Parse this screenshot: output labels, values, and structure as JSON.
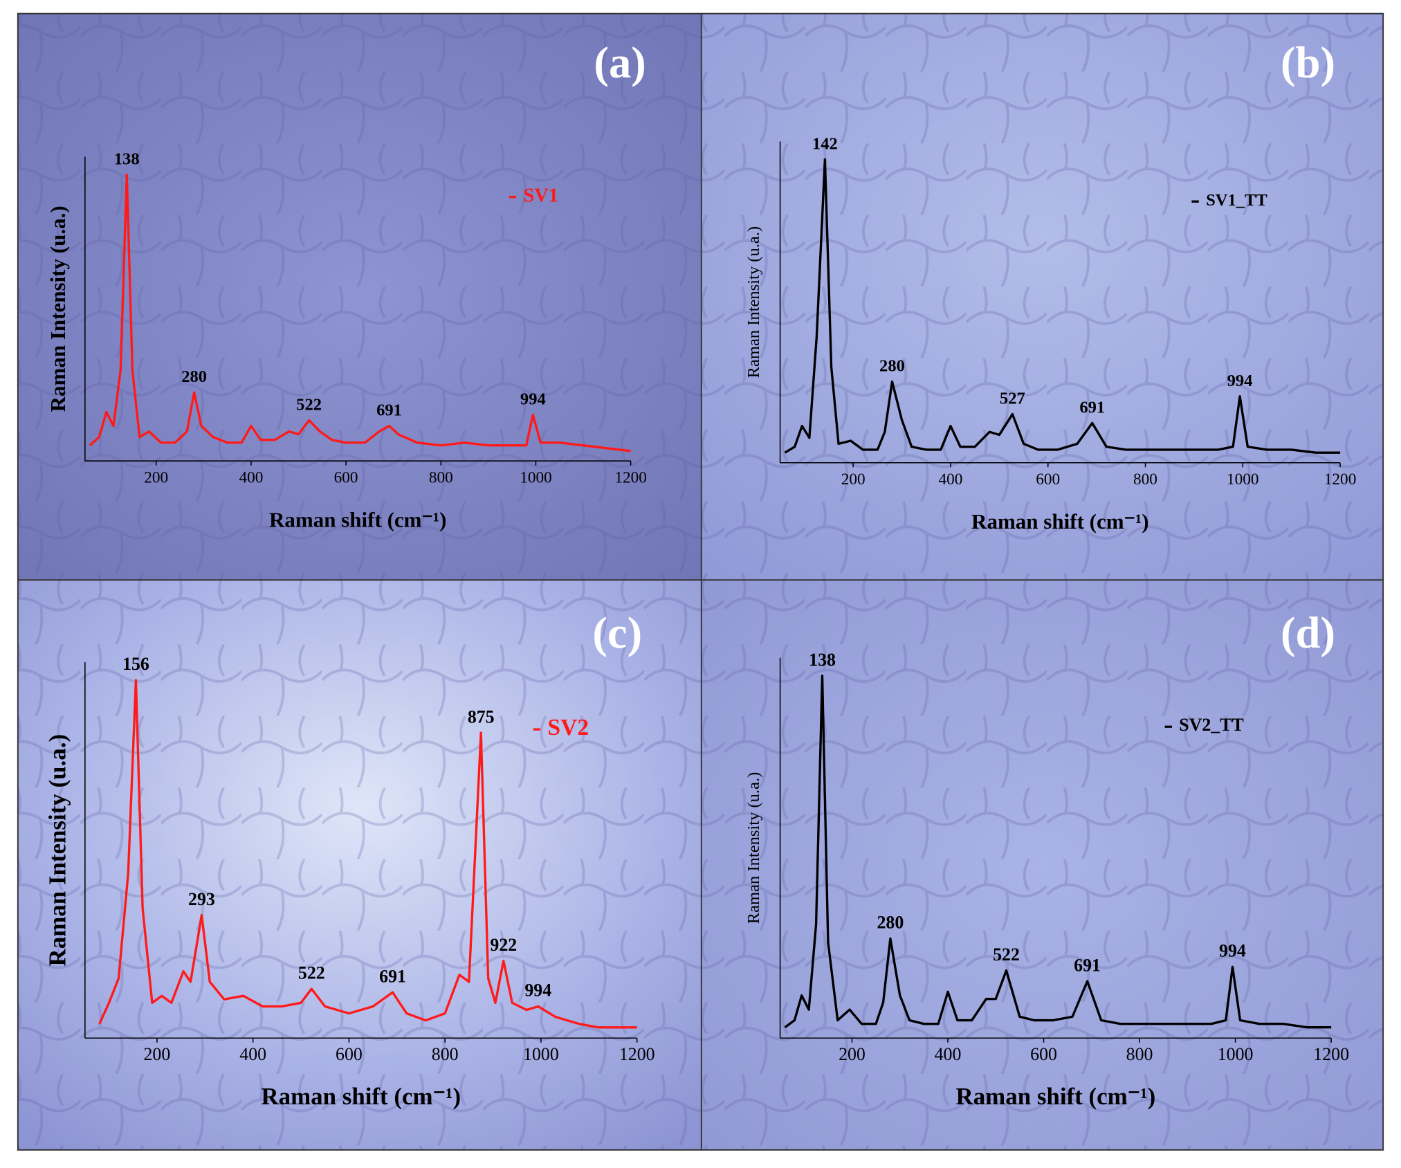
{
  "chart_data": [
    {
      "type": "line",
      "title": "(a)",
      "x_label": "Raman shift (cm⁻¹)",
      "y_label": "Raman Intensity (u.a.)",
      "xlim": [
        50,
        1200
      ],
      "ylim": [
        0,
        100
      ],
      "xticks": [
        200,
        400,
        600,
        800,
        1000,
        1200
      ],
      "x": [
        60,
        80,
        95,
        110,
        125,
        138,
        150,
        165,
        185,
        210,
        240,
        265,
        280,
        295,
        320,
        350,
        380,
        400,
        420,
        450,
        480,
        500,
        522,
        545,
        570,
        600,
        640,
        670,
        691,
        710,
        750,
        800,
        850,
        900,
        950,
        980,
        994,
        1010,
        1050,
        1100,
        1150,
        1200
      ],
      "series": [
        {
          "name": "SV1",
          "color": "#ff1a1a",
          "values": [
            3,
            6,
            15,
            10,
            30,
            100,
            30,
            6,
            8,
            4,
            4,
            8,
            22,
            10,
            6,
            4,
            4,
            10,
            5,
            5,
            8,
            7,
            12,
            8,
            5,
            4,
            4,
            8,
            10,
            7,
            4,
            3,
            4,
            3,
            3,
            3,
            14,
            4,
            4,
            3,
            2,
            1
          ]
        }
      ],
      "peak_labels": [
        138,
        280,
        522,
        691,
        994
      ]
    },
    {
      "type": "line",
      "title": "(b)",
      "x_label": "Raman shift (cm⁻¹)",
      "y_label": "Raman Intensity (u.a.)",
      "xlim": [
        50,
        1200
      ],
      "ylim": [
        0,
        100
      ],
      "xticks": [
        200,
        400,
        600,
        800,
        1000,
        1200
      ],
      "x": [
        60,
        80,
        95,
        110,
        125,
        142,
        155,
        170,
        195,
        220,
        250,
        265,
        280,
        300,
        320,
        350,
        380,
        400,
        420,
        450,
        480,
        500,
        527,
        550,
        580,
        620,
        660,
        691,
        720,
        760,
        800,
        850,
        900,
        950,
        980,
        994,
        1010,
        1050,
        1100,
        1150,
        1200
      ],
      "series": [
        {
          "name": "SV1_TT",
          "color": "#000000",
          "values": [
            1,
            3,
            10,
            6,
            40,
            100,
            30,
            4,
            5,
            2,
            2,
            8,
            25,
            12,
            3,
            2,
            2,
            10,
            3,
            3,
            8,
            7,
            14,
            4,
            2,
            2,
            4,
            11,
            3,
            2,
            2,
            2,
            2,
            2,
            3,
            20,
            3,
            2,
            2,
            1,
            1
          ]
        }
      ],
      "peak_labels": [
        142,
        280,
        527,
        691,
        994
      ]
    },
    {
      "type": "line",
      "title": "(c)",
      "x_label": "Raman shift (cm⁻¹)",
      "y_label": "Raman Intensity (u.a.)",
      "xlim": [
        50,
        1200
      ],
      "ylim": [
        0,
        100
      ],
      "xticks": [
        200,
        400,
        600,
        800,
        1000,
        1200
      ],
      "x": [
        80,
        100,
        120,
        140,
        156,
        170,
        190,
        210,
        230,
        255,
        270,
        293,
        310,
        340,
        380,
        420,
        460,
        500,
        522,
        550,
        600,
        650,
        691,
        720,
        760,
        800,
        830,
        850,
        875,
        890,
        905,
        922,
        940,
        970,
        994,
        1030,
        1080,
        1120,
        1200
      ],
      "series": [
        {
          "name": "SV2",
          "color": "#ff1a1a",
          "values": [
            2,
            8,
            15,
            45,
            100,
            35,
            8,
            10,
            8,
            17,
            14,
            33,
            14,
            9,
            10,
            7,
            7,
            8,
            12,
            7,
            5,
            7,
            11,
            5,
            3,
            5,
            16,
            14,
            85,
            15,
            8,
            20,
            8,
            6,
            7,
            4,
            2,
            1,
            1
          ]
        }
      ],
      "peak_labels": [
        156,
        293,
        522,
        691,
        875,
        922,
        994
      ]
    },
    {
      "type": "line",
      "title": "(d)",
      "x_label": "Raman shift (cm⁻¹)",
      "y_label": "Raman Intensity (u.a.)",
      "xlim": [
        50,
        1200
      ],
      "ylim": [
        0,
        100
      ],
      "xticks": [
        200,
        400,
        600,
        800,
        1000,
        1200
      ],
      "x": [
        60,
        80,
        95,
        110,
        125,
        138,
        150,
        170,
        195,
        220,
        250,
        265,
        280,
        300,
        320,
        350,
        380,
        400,
        420,
        450,
        480,
        500,
        522,
        550,
        580,
        620,
        660,
        691,
        720,
        760,
        800,
        850,
        900,
        950,
        980,
        994,
        1010,
        1050,
        1100,
        1150,
        1200
      ],
      "series": [
        {
          "name": "SV2_TT",
          "color": "#000000",
          "values": [
            1,
            3,
            10,
            6,
            30,
            100,
            25,
            3,
            6,
            2,
            2,
            8,
            26,
            10,
            3,
            2,
            2,
            11,
            3,
            3,
            9,
            9,
            17,
            4,
            3,
            3,
            4,
            14,
            3,
            2,
            2,
            2,
            2,
            2,
            3,
            18,
            3,
            2,
            2,
            1,
            1
          ]
        }
      ],
      "peak_labels": [
        138,
        280,
        522,
        691,
        994
      ]
    }
  ]
}
